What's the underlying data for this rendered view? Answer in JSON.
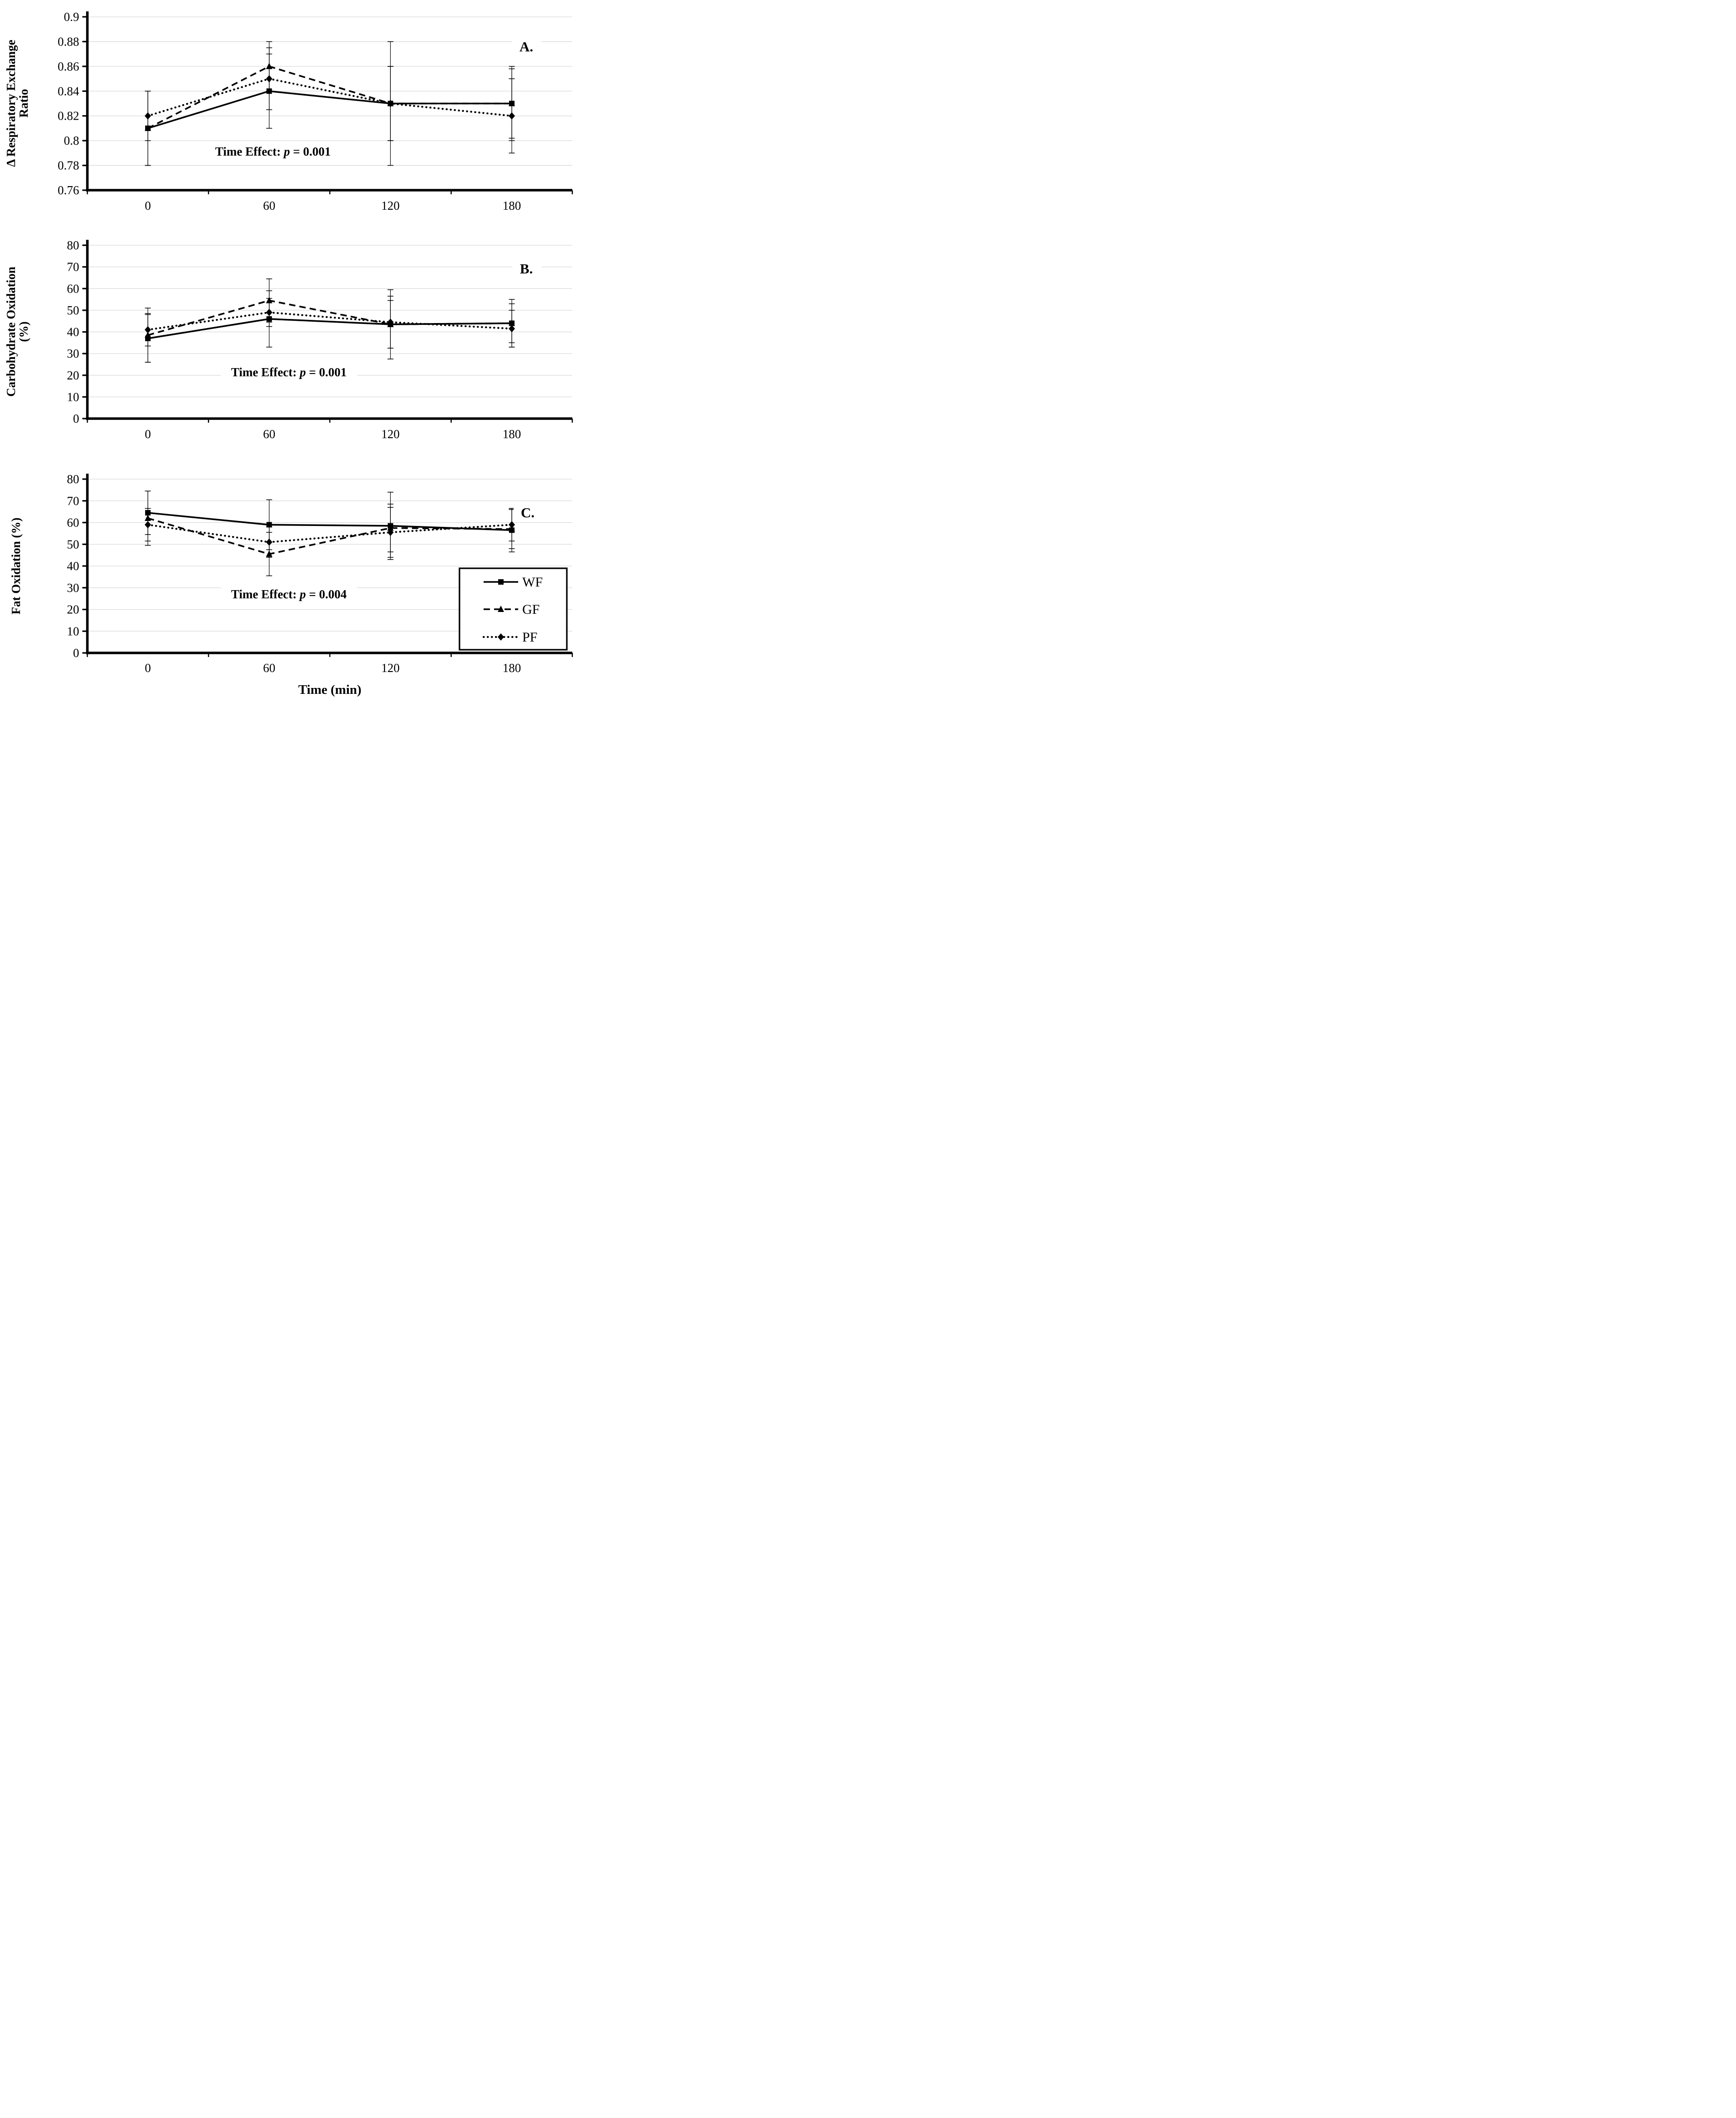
{
  "figure": {
    "xlabel": "Time (min)",
    "background": "#ffffff",
    "gridline_color": "#d9d9d9",
    "series_color": "#000000",
    "legend_position": "bottom-right-inside-panel-C",
    "legend": [
      {
        "label": "WF",
        "line": "solid",
        "marker": "square"
      },
      {
        "label": "GF",
        "line": "dashed",
        "marker": "triangle"
      },
      {
        "label": "PF",
        "line": "dotted",
        "marker": "diamond"
      }
    ]
  },
  "chart_data": [
    {
      "type": "line",
      "panel_label": "A.",
      "ylabel": "Δ Respiratory Exchange Ratio",
      "ylabel_lines": [
        "Δ Respiratory Exchange",
        "Ratio"
      ],
      "ylim": [
        0.76,
        0.9
      ],
      "yticks": [
        "0.76",
        "0.78",
        "0.8",
        "0.82",
        "0.84",
        "0.86",
        "0.88",
        "0.9"
      ],
      "x": [
        "0",
        "60",
        "120",
        "180"
      ],
      "grid": true,
      "annotation": {
        "prefix": "Time Effect: ",
        "italic": "p",
        "suffix": " = 0.001"
      },
      "series": [
        {
          "name": "WF",
          "values": [
            0.81,
            0.84,
            0.83,
            0.83
          ],
          "err": [
            0.03,
            0.03,
            0.05,
            0.03
          ]
        },
        {
          "name": "GF",
          "values": [
            0.81,
            0.86,
            0.83,
            0.83
          ],
          "err": [
            0.03,
            0.02,
            0.03,
            0.028
          ]
        },
        {
          "name": "PF",
          "values": [
            0.82,
            0.85,
            0.83,
            0.82
          ],
          "err": [
            0.02,
            0.025,
            0.03,
            0.03
          ]
        }
      ]
    },
    {
      "type": "line",
      "panel_label": "B.",
      "ylabel": "Carbohydrate Oxidation (%)",
      "ylabel_lines": [
        "Carbohydrate Oxidation",
        "(%)"
      ],
      "ylim": [
        0,
        80
      ],
      "yticks": [
        "0",
        "10",
        "20",
        "30",
        "40",
        "50",
        "60",
        "70",
        "80"
      ],
      "x": [
        "0",
        "60",
        "120",
        "180"
      ],
      "grid": true,
      "annotation": {
        "prefix": "Time Effect: ",
        "italic": "p",
        "suffix": " = 0.001"
      },
      "series": [
        {
          "name": "WF",
          "values": [
            37,
            46,
            43.5,
            44
          ],
          "err": [
            11,
            13,
            16,
            11
          ]
        },
        {
          "name": "GF",
          "values": [
            38.5,
            54.5,
            43.5,
            44
          ],
          "err": [
            12.5,
            10,
            11,
            9
          ]
        },
        {
          "name": "PF",
          "values": [
            41,
            49,
            44.5,
            41.5
          ],
          "err": [
            7.5,
            6.5,
            12,
            8.5
          ]
        }
      ]
    },
    {
      "type": "line",
      "panel_label": "C.",
      "ylabel": "Fat Oxidation (%)",
      "ylabel_lines": [
        "Fat Oxidation (%)"
      ],
      "ylim": [
        0,
        80
      ],
      "yticks": [
        "0",
        "10",
        "20",
        "30",
        "40",
        "50",
        "60",
        "70",
        "80"
      ],
      "x": [
        "0",
        "60",
        "120",
        "180"
      ],
      "grid": true,
      "show_legend": true,
      "annotation": {
        "prefix": "Time Effect: ",
        "italic": "p",
        "suffix": " = 0.004"
      },
      "series": [
        {
          "name": "WF",
          "values": [
            64.5,
            59,
            58.5,
            56.5
          ],
          "err": [
            10,
            11.5,
            15.5,
            10
          ]
        },
        {
          "name": "GF",
          "values": [
            62,
            45.5,
            57.5,
            57
          ],
          "err": [
            12.5,
            10,
            11,
            9
          ]
        },
        {
          "name": "PF",
          "values": [
            59,
            51,
            55.5,
            59
          ],
          "err": [
            7.5,
            7,
            11.5,
            7.5
          ]
        }
      ]
    }
  ]
}
